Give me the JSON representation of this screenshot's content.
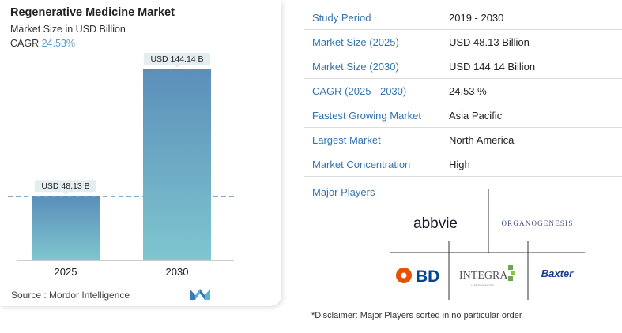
{
  "header": {
    "title": "Regenerative Medicine Market",
    "subtitle": "Market Size in USD Billion",
    "cagr_label": "CAGR",
    "cagr_value": "24.53%"
  },
  "chart_data": {
    "type": "bar",
    "categories": [
      "2025",
      "2030"
    ],
    "values": [
      48.13,
      144.14
    ],
    "data_labels": [
      "USD 48.13 B",
      "USD 144.14 B"
    ],
    "ylim": [
      0,
      150
    ],
    "grid": false,
    "reference_line_at": 48.13,
    "colors": {
      "bar_top": "#5b8fba",
      "bar_bottom": "#7fc6cf",
      "label_bg": "#e4eef1"
    }
  },
  "source": "Source :  Mordor Intelligence",
  "table": [
    {
      "key": "Study Period",
      "value": "2019 - 2030"
    },
    {
      "key": "Market Size (2025)",
      "value": "USD 48.13 Billion"
    },
    {
      "key": "Market Size (2030)",
      "value": "USD 144.14 Billion"
    },
    {
      "key": "CAGR (2025 - 2030)",
      "value": "24.53 %"
    },
    {
      "key": "Fastest Growing Market",
      "value": "Asia Pacific"
    },
    {
      "key": "Largest Market",
      "value": "North America"
    },
    {
      "key": "Market Concentration",
      "value": "High"
    }
  ],
  "major_players_label": "Major Players",
  "players": {
    "abbvie": "abbvie",
    "organogenesis": "ORGANOGENESIS",
    "bd": "BD",
    "integra": "INTEGRA",
    "integra_tag": "LIFESCIENCES",
    "baxter": "Baxter"
  },
  "disclaimer": "*Disclaimer: Major Players sorted in no particular order",
  "colors": {
    "accent_blue": "#3474b0",
    "cagr_blue": "#5b9bc6",
    "bd_orange": "#e35205",
    "bd_blue": "#004593",
    "integra_green": "#6aa84f",
    "baxter_blue": "#1a3d8f"
  }
}
